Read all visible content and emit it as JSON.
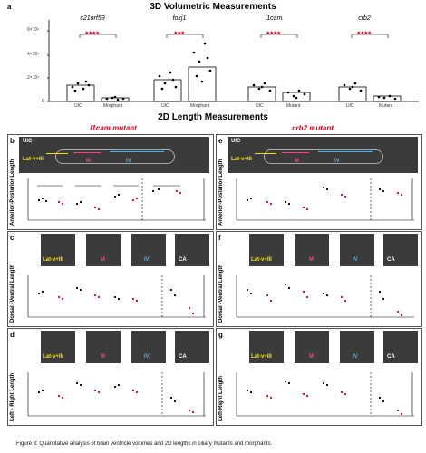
{
  "panel_a": {
    "letter": "a",
    "title": "3D Volumetric Measurements",
    "y_ticks": [
      "6×10⁴",
      "4×10⁴",
      "2×10⁴",
      "0"
    ],
    "groups": [
      {
        "gene": "c21orf59",
        "stars": "****",
        "ctrl": "UIC",
        "mut": "Morphant"
      },
      {
        "gene": "foxj1",
        "stars": "***",
        "ctrl": "UIC",
        "mut": "Morphant"
      },
      {
        "gene": "l1cam",
        "stars": "****",
        "ctrl": "UIC",
        "mut": "Mutant"
      },
      {
        "gene": "crb2",
        "stars": "****",
        "ctrl": "UIC",
        "mut": "Mutant"
      }
    ]
  },
  "section2": {
    "title": "2D Length Measurements"
  },
  "left": {
    "header": "l1cam mutant",
    "b": {
      "letter": "b",
      "ylabel": "Anterior-Posterior Length"
    },
    "c": {
      "letter": "c",
      "ylabel": "Dorsal -Ventral Length"
    },
    "d": {
      "letter": "d",
      "ylabel": "Left - Right Length"
    }
  },
  "right": {
    "header": "crb2 mutant",
    "e": {
      "letter": "e",
      "ylabel": "Anterior-Posterior Length"
    },
    "f": {
      "letter": "f",
      "ylabel": "Dorsal -Ventral Length"
    },
    "g": {
      "letter": "g",
      "ylabel": "Left-Right Length"
    }
  },
  "regions": {
    "lat": "Lat-v+III",
    "m": "M",
    "iv": "IV",
    "ca": "CA",
    "uic": "UIC"
  },
  "colors": {
    "red": "#d0021b",
    "yellow": "#f5e000",
    "pink": "#ff3c8c",
    "cyan": "#3fb6ff"
  },
  "caption": "Figure 3: Quantitative analysis of brain ventricle volumes and 2D lengths in ciliary mutants and morphants."
}
